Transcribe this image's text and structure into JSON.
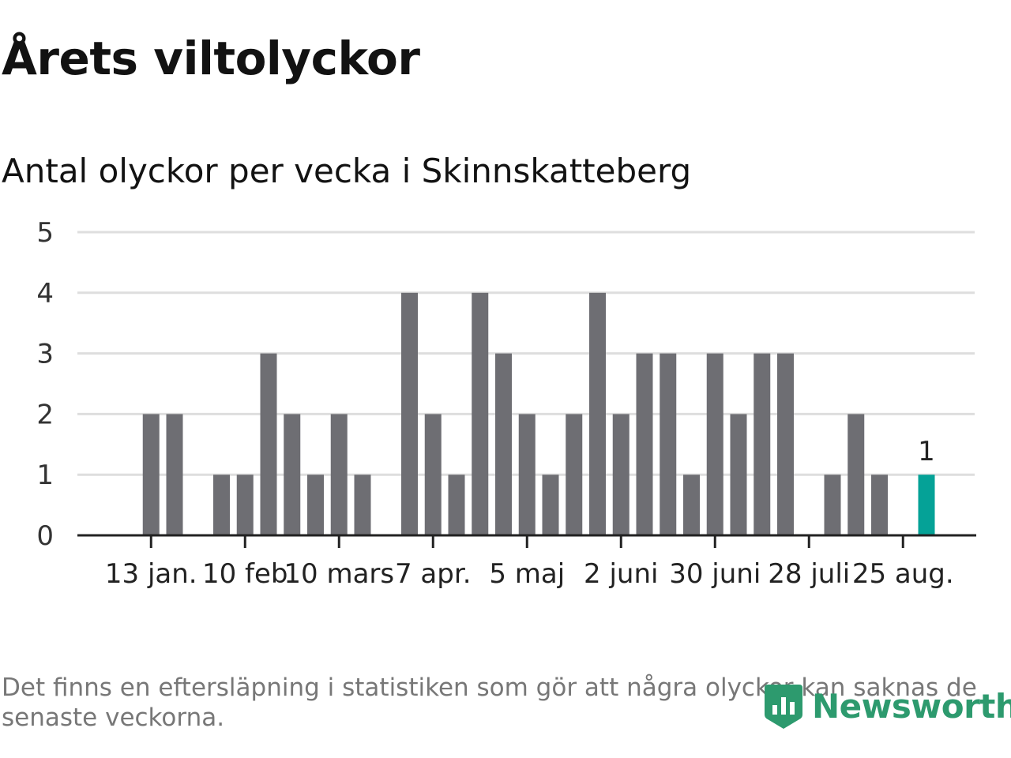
{
  "chart_data": {
    "type": "bar",
    "title": "Årets viltolyckor",
    "subtitle": "Antal olyckor per vecka i Skinnskatteberg",
    "xlabel": "",
    "ylabel": "",
    "ylim": [
      0,
      5
    ],
    "yticks": [
      "0",
      "1",
      "2",
      "3",
      "4",
      "5"
    ],
    "x_tick_labels": [
      {
        "label": "13 jan.",
        "week_index": 1
      },
      {
        "label": "10 feb",
        "week_index": 5
      },
      {
        "label": "10 mars",
        "week_index": 9
      },
      {
        "label": "7 apr.",
        "week_index": 13
      },
      {
        "label": "5 maj",
        "week_index": 17
      },
      {
        "label": "2 juni",
        "week_index": 21
      },
      {
        "label": "30 juni",
        "week_index": 25
      },
      {
        "label": "28 juli",
        "week_index": 29
      },
      {
        "label": "25 aug.",
        "week_index": 33
      }
    ],
    "values": [
      0,
      2,
      2,
      0,
      1,
      1,
      3,
      2,
      1,
      2,
      1,
      0,
      4,
      2,
      1,
      4,
      3,
      2,
      1,
      2,
      4,
      2,
      3,
      3,
      1,
      3,
      2,
      3,
      3,
      0,
      1,
      2,
      1,
      0,
      1
    ],
    "highlight_index": 34,
    "highlight_label": "1",
    "grid": true,
    "colors": {
      "bar": "#6e6e73",
      "highlight": "#05a297",
      "grid": "#dedede",
      "axis": "#222222"
    }
  },
  "footnote": "Det finns en eftersläpning i statistiken som gör att några olyckor kan saknas de senaste veckorna.",
  "brand": {
    "name": "Newsworthy",
    "icon": "bar-chart-badge-icon",
    "color": "#2d9a6e"
  }
}
